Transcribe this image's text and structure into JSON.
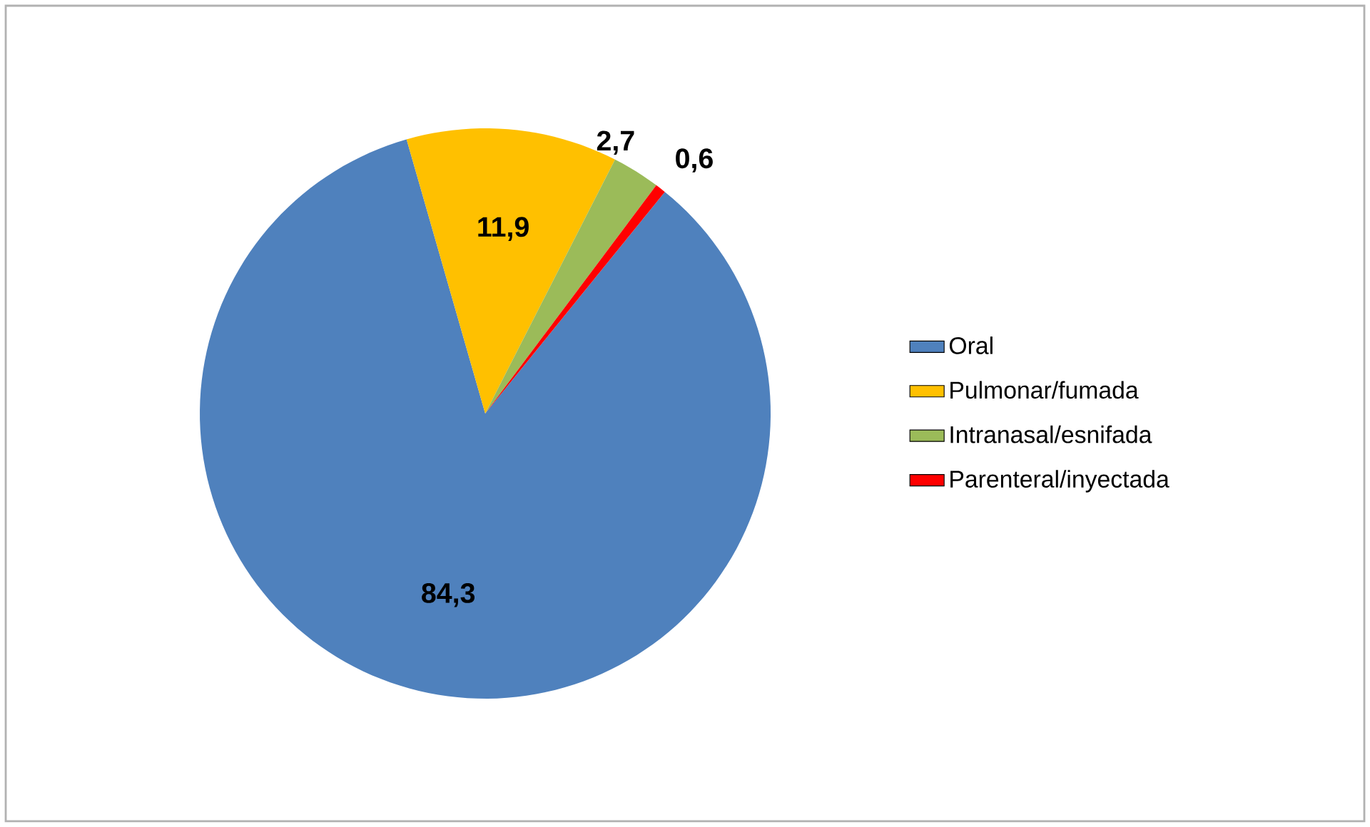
{
  "chart_data": {
    "type": "pie",
    "categories": [
      "Oral",
      "Pulmonar/fumada",
      "Intranasal/esnifada",
      "Parenteral/inyectada"
    ],
    "values": [
      84.3,
      11.9,
      2.7,
      0.6
    ],
    "colors": [
      "#4f81bd",
      "#ffc000",
      "#9bbb59",
      "#ff0000"
    ],
    "value_labels": [
      "84,3",
      "11,9",
      "2,7",
      "0,6"
    ],
    "legend": "right"
  }
}
